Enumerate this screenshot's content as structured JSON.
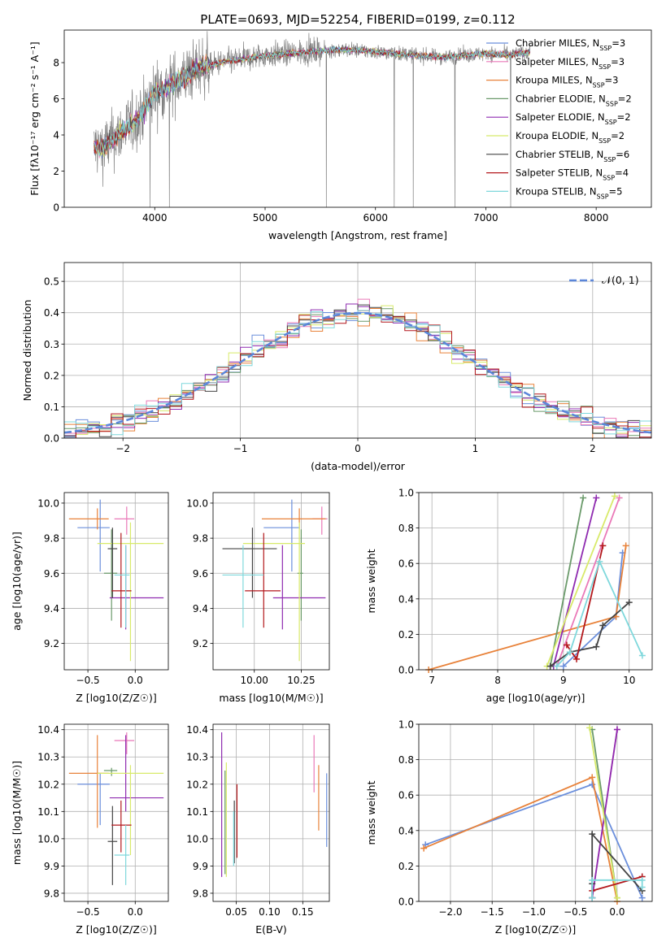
{
  "figure": {
    "title": "PLATE=0693, MJD=52254, FIBERID=0199, z=0.112"
  },
  "models": [
    {
      "name": "Chabrier MILES",
      "nssp": "3",
      "color": "#6b8fdc"
    },
    {
      "name": "Salpeter MILES",
      "nssp": "3",
      "color": "#ea79b8"
    },
    {
      "name": "Kroupa MILES",
      "nssp": "3",
      "color": "#e8823a"
    },
    {
      "name": "Chabrier ELODIE",
      "nssp": "2",
      "color": "#6a9a6a"
    },
    {
      "name": "Salpeter ELODIE",
      "nssp": "2",
      "color": "#8f2bb0"
    },
    {
      "name": "Kroupa ELODIE",
      "nssp": "2",
      "color": "#d8ea6a"
    },
    {
      "name": "Chabrier STELIB",
      "nssp": "6",
      "color": "#444444"
    },
    {
      "name": "Salpeter STELIB",
      "nssp": "4",
      "color": "#b3171b"
    },
    {
      "name": "Kroupa STELIB",
      "nssp": "5",
      "color": "#7fd8dc"
    }
  ],
  "chart_data": [
    {
      "id": "spectrum",
      "type": "line",
      "xlabel": "wavelength [Angstrom, rest frame]",
      "ylabel": "Flux [fλ10⁻¹⁷ erg cm⁻² s⁻¹ A⁻¹]",
      "xlim": [
        3180,
        8500
      ],
      "ylim": [
        0,
        9.8
      ],
      "xticks": [
        4000,
        5000,
        6000,
        7000,
        8000
      ],
      "yticks": [
        0,
        2,
        4,
        6,
        8
      ],
      "legend_entries": [
        "Chabrier MILES, NSSP=3",
        "Salpeter MILES, NSSP=3",
        "Kroupa MILES, NSSP=3",
        "Chabrier ELODIE, NSSP=2",
        "Salpeter ELODIE, NSSP=2",
        "Kroupa ELODIE, NSSP=2",
        "Chabrier STELIB, NSSP=6",
        "Salpeter STELIB, NSSP=4",
        "Kroupa STELIB, NSSP=5"
      ],
      "legend_position": "right",
      "model_continuum": {
        "x": [
          3400,
          3500,
          3600,
          3700,
          3800,
          3900,
          4000,
          4100,
          4200,
          4300,
          4400,
          4500,
          4600,
          4700,
          4800,
          4900,
          5000,
          5200,
          5400,
          5600,
          5800,
          6000,
          6200,
          6400,
          6600,
          6800,
          7000,
          7200,
          7400
        ],
        "y": [
          3.5,
          3.2,
          3.6,
          4.2,
          4.6,
          5.3,
          6.4,
          6.6,
          7.0,
          7.3,
          7.8,
          7.8,
          8.0,
          8.1,
          8.2,
          8.3,
          8.4,
          8.5,
          8.6,
          8.7,
          8.7,
          8.6,
          8.5,
          8.4,
          8.3,
          8.4,
          8.5,
          8.4,
          8.6
        ]
      },
      "data_range": [
        3450,
        7400
      ]
    },
    {
      "id": "residuals",
      "type": "histogram",
      "xlabel": "(data-model)/error",
      "ylabel": "Normed distribution",
      "xlim": [
        -2.5,
        2.5
      ],
      "ylim": [
        0,
        0.56
      ],
      "xticks": [
        -2,
        -1,
        0,
        1,
        2
      ],
      "yticks": [
        0.0,
        0.1,
        0.2,
        0.3,
        0.4,
        0.5
      ],
      "legend_entries": [
        "𝒩(0, 1)"
      ],
      "legend_position": "upper right",
      "bin_start": -2.5,
      "bin_width": 0.1,
      "reference_curve": "N(0,1)"
    },
    {
      "id": "age-vs-Z",
      "type": "scatter",
      "xlabel": "Z [log10(Z/Z☉)]",
      "ylabel": "age  [log10(age/yr)]",
      "xlim": [
        -0.75,
        0.35
      ],
      "ylim": [
        9.05,
        10.06
      ],
      "xticks": [
        -0.5,
        0.0
      ],
      "yticks": [
        9.2,
        9.4,
        9.6,
        9.8,
        10.0
      ],
      "points": [
        {
          "x": -0.37,
          "y": 9.86,
          "xerr": [
            0.24,
            0.1
          ],
          "yerr": [
            0.25,
            0.16
          ]
        },
        {
          "x": -0.09,
          "y": 9.91,
          "xerr": [
            0.13,
            0.08
          ],
          "yerr": [
            0.09,
            0.07
          ]
        },
        {
          "x": -0.4,
          "y": 9.91,
          "xerr": [
            0.3,
            0.12
          ],
          "yerr": [
            0.06,
            0.06
          ]
        },
        {
          "x": -0.25,
          "y": 9.6,
          "xerr": [
            0.08,
            0.06
          ],
          "yerr": [
            0.27,
            0.25
          ]
        },
        {
          "x": -0.1,
          "y": 9.46,
          "xerr": [
            0.17,
            0.4
          ],
          "yerr": [
            0.18,
            0.3
          ]
        },
        {
          "x": -0.05,
          "y": 9.77,
          "xerr": [
            0.35,
            0.35
          ],
          "yerr": [
            0.67,
            0.12
          ]
        },
        {
          "x": -0.24,
          "y": 9.74,
          "xerr": [
            0.05,
            0.05
          ],
          "yerr": [
            0.28,
            0.12
          ]
        },
        {
          "x": -0.15,
          "y": 9.5,
          "xerr": [
            0.1,
            0.11
          ],
          "yerr": [
            0.21,
            0.33
          ]
        },
        {
          "x": -0.1,
          "y": 9.59,
          "xerr": [
            0.12,
            0.04
          ],
          "yerr": [
            0.3,
            0.17
          ]
        }
      ]
    },
    {
      "id": "age-vs-mass",
      "type": "scatter",
      "xlabel": "mass [log10(M/M☉)]",
      "ylabel": "",
      "xlim": [
        9.78,
        10.4
      ],
      "ylim": [
        9.05,
        10.06
      ],
      "xticks": [
        10.0,
        10.25
      ],
      "yticks": [
        9.2,
        9.4,
        9.6,
        9.8,
        10.0
      ],
      "points": [
        {
          "x": 10.2,
          "y": 9.86,
          "xerr": [
            0.15,
            0.04
          ],
          "yerr": [
            0.25,
            0.16
          ]
        },
        {
          "x": 10.36,
          "y": 9.91,
          "xerr": [
            0.05,
            0.03
          ],
          "yerr": [
            0.09,
            0.07
          ]
        },
        {
          "x": 10.24,
          "y": 9.91,
          "xerr": [
            0.2,
            0.14
          ],
          "yerr": [
            0.06,
            0.06
          ]
        },
        {
          "x": 10.25,
          "y": 9.6,
          "xerr": [
            0.02,
            0.01
          ],
          "yerr": [
            0.27,
            0.25
          ]
        },
        {
          "x": 10.15,
          "y": 9.46,
          "xerr": [
            0.05,
            0.23
          ],
          "yerr": [
            0.18,
            0.3
          ]
        },
        {
          "x": 10.24,
          "y": 9.77,
          "xerr": [
            0.3,
            0.03
          ],
          "yerr": [
            0.67,
            0.12
          ]
        },
        {
          "x": 9.99,
          "y": 9.74,
          "xerr": [
            0.16,
            0.13
          ],
          "yerr": [
            0.28,
            0.12
          ]
        },
        {
          "x": 10.05,
          "y": 9.5,
          "xerr": [
            0.1,
            0.09
          ],
          "yerr": [
            0.21,
            0.33
          ]
        },
        {
          "x": 9.94,
          "y": 9.59,
          "xerr": [
            0.11,
            0.11
          ],
          "yerr": [
            0.3,
            0.17
          ]
        }
      ]
    },
    {
      "id": "weight-vs-age",
      "type": "line",
      "xlabel": "age  [log10(age/yr)]",
      "ylabel": "mass weight",
      "xlim": [
        6.8,
        10.35
      ],
      "ylim": [
        0.0,
        1.0
      ],
      "xticks": [
        7,
        8,
        9,
        10
      ],
      "yticks": [
        0.0,
        0.2,
        0.4,
        0.6,
        0.8,
        1.0
      ],
      "series": [
        {
          "x": [
            9.0,
            9.8,
            9.9
          ],
          "y": [
            0.02,
            0.3,
            0.66
          ]
        },
        {
          "x": [
            8.9,
            9.85
          ],
          "y": [
            0.02,
            0.97
          ]
        },
        {
          "x": [
            6.95,
            9.8,
            9.95
          ],
          "y": [
            0.0,
            0.3,
            0.7
          ]
        },
        {
          "x": [
            8.8,
            9.3
          ],
          "y": [
            0.02,
            0.97
          ]
        },
        {
          "x": [
            8.85,
            9.5
          ],
          "y": [
            0.02,
            0.97
          ]
        },
        {
          "x": [
            8.75,
            9.78
          ],
          "y": [
            0.02,
            0.98
          ]
        },
        {
          "x": [
            8.8,
            9.1,
            9.5,
            9.6,
            10.0
          ],
          "y": [
            0.02,
            0.1,
            0.13,
            0.25,
            0.38
          ]
        },
        {
          "x": [
            9.05,
            9.2,
            9.6
          ],
          "y": [
            0.14,
            0.06,
            0.7
          ]
        },
        {
          "x": [
            8.9,
            9.1,
            9.55,
            10.2
          ],
          "y": [
            0.02,
            0.1,
            0.61,
            0.08
          ]
        }
      ]
    },
    {
      "id": "mass-vs-Z",
      "type": "scatter",
      "xlabel": "Z [log10(Z/Z☉)]",
      "ylabel": "mass [log10(M/M☉)]",
      "xlim": [
        -0.75,
        0.35
      ],
      "ylim": [
        9.77,
        10.42
      ],
      "xticks": [
        -0.5,
        0.0
      ],
      "yticks": [
        9.8,
        9.9,
        10.0,
        10.1,
        10.2,
        10.3,
        10.4
      ],
      "points": [
        {
          "x": -0.37,
          "y": 10.2,
          "xerr": [
            0.24,
            0.1
          ],
          "yerr": [
            0.15,
            0.04
          ]
        },
        {
          "x": -0.09,
          "y": 10.36,
          "xerr": [
            0.13,
            0.08
          ],
          "yerr": [
            0.05,
            0.03
          ]
        },
        {
          "x": -0.4,
          "y": 10.24,
          "xerr": [
            0.3,
            0.12
          ],
          "yerr": [
            0.2,
            0.14
          ]
        },
        {
          "x": -0.25,
          "y": 10.25,
          "xerr": [
            0.08,
            0.06
          ],
          "yerr": [
            0.02,
            0.01
          ]
        },
        {
          "x": -0.1,
          "y": 10.15,
          "xerr": [
            0.17,
            0.4
          ],
          "yerr": [
            0.05,
            0.23
          ]
        },
        {
          "x": -0.05,
          "y": 10.24,
          "xerr": [
            0.35,
            0.35
          ],
          "yerr": [
            0.3,
            0.03
          ]
        },
        {
          "x": -0.24,
          "y": 9.99,
          "xerr": [
            0.05,
            0.05
          ],
          "yerr": [
            0.16,
            0.13
          ]
        },
        {
          "x": -0.15,
          "y": 10.05,
          "xerr": [
            0.1,
            0.11
          ],
          "yerr": [
            0.1,
            0.09
          ]
        },
        {
          "x": -0.1,
          "y": 9.94,
          "xerr": [
            0.12,
            0.04
          ],
          "yerr": [
            0.11,
            0.11
          ]
        }
      ]
    },
    {
      "id": "mass-vs-ebv",
      "type": "scatter",
      "xlabel": "E(B-V)",
      "ylabel": "",
      "xlim": [
        0.015,
        0.19
      ],
      "ylim": [
        9.77,
        10.42
      ],
      "xticks": [
        0.05,
        0.1,
        0.15
      ],
      "yticks": [
        9.8,
        9.9,
        10.0,
        10.1,
        10.2,
        10.3,
        10.4
      ],
      "points": [
        {
          "x": 0.186,
          "y": 10.13,
          "xerr": [
            0,
            0
          ],
          "yerr": [
            0.16,
            0.11
          ]
        },
        {
          "x": 0.167,
          "y": 10.27,
          "xerr": [
            0,
            0
          ],
          "yerr": [
            0.1,
            0.11
          ]
        },
        {
          "x": 0.174,
          "y": 10.15,
          "xerr": [
            0,
            0
          ],
          "yerr": [
            0.12,
            0.12
          ]
        },
        {
          "x": 0.033,
          "y": 10.05,
          "xerr": [
            0,
            0
          ],
          "yerr": [
            0.18,
            0.2
          ]
        },
        {
          "x": 0.028,
          "y": 10.2,
          "xerr": [
            0,
            0
          ],
          "yerr": [
            0.34,
            0.19
          ]
        },
        {
          "x": 0.035,
          "y": 10.1,
          "xerr": [
            0,
            0
          ],
          "yerr": [
            0.24,
            0.18
          ]
        },
        {
          "x": 0.047,
          "y": 10.06,
          "xerr": [
            0,
            0
          ],
          "yerr": [
            0.15,
            0.08
          ]
        },
        {
          "x": 0.051,
          "y": 10.12,
          "xerr": [
            0,
            0
          ],
          "yerr": [
            0.19,
            0.08
          ]
        },
        {
          "x": 0.046,
          "y": 10.0,
          "xerr": [
            0,
            0
          ],
          "yerr": [
            0.1,
            0.1
          ]
        }
      ]
    },
    {
      "id": "weight-vs-Z",
      "type": "line",
      "xlabel": "Z [log10(Z/Z☉)]",
      "ylabel": "mass weight",
      "xlim": [
        -2.38,
        0.42
      ],
      "ylim": [
        0.0,
        1.0
      ],
      "xticks": [
        -2.0,
        -1.5,
        -1.0,
        -0.5,
        0.0
      ],
      "yticks": [
        0.0,
        0.2,
        0.4,
        0.6,
        0.8,
        1.0
      ],
      "series": [
        {
          "x": [
            -2.3,
            -0.3,
            0.3
          ],
          "y": [
            0.32,
            0.66,
            0.02
          ]
        },
        {
          "x": [
            -0.3,
            0.0
          ],
          "y": [
            0.02,
            0.97
          ]
        },
        {
          "x": [
            -2.32,
            -0.3,
            0.0
          ],
          "y": [
            0.3,
            0.7,
            0.0
          ]
        },
        {
          "x": [
            -0.3,
            0.0
          ],
          "y": [
            0.97,
            0.02
          ]
        },
        {
          "x": [
            -0.3,
            0.0
          ],
          "y": [
            0.02,
            0.97
          ]
        },
        {
          "x": [
            -0.33,
            0.0
          ],
          "y": [
            0.98,
            0.02
          ]
        },
        {
          "x": [
            -0.3,
            -0.3,
            -0.3,
            0.3
          ],
          "y": [
            0.02,
            0.1,
            0.38,
            0.06
          ]
        },
        {
          "x": [
            -0.3,
            0.3
          ],
          "y": [
            0.06,
            0.14
          ]
        },
        {
          "x": [
            -0.3,
            -0.3,
            0.3,
            0.3
          ],
          "y": [
            0.02,
            0.12,
            0.12,
            0.08
          ]
        }
      ]
    }
  ]
}
